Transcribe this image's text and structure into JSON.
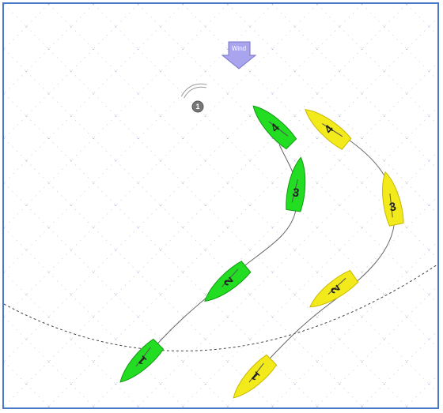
{
  "diagram": {
    "wind_label": "Wind",
    "mark_label": "1",
    "colors": {
      "green_boat": "#22dd22",
      "yellow_boat": "#f2ea1a",
      "wind_arrow": "#a9a4ee",
      "frame": "#4a78c8",
      "grid": "#b9b9b9",
      "mark": "#777777"
    },
    "green_boats": [
      {
        "label": "4"
      },
      {
        "label": "3"
      },
      {
        "label": "2"
      },
      {
        "label": "1"
      }
    ],
    "yellow_boats": [
      {
        "label": "4"
      },
      {
        "label": "3"
      },
      {
        "label": "2"
      },
      {
        "label": "1"
      }
    ]
  }
}
